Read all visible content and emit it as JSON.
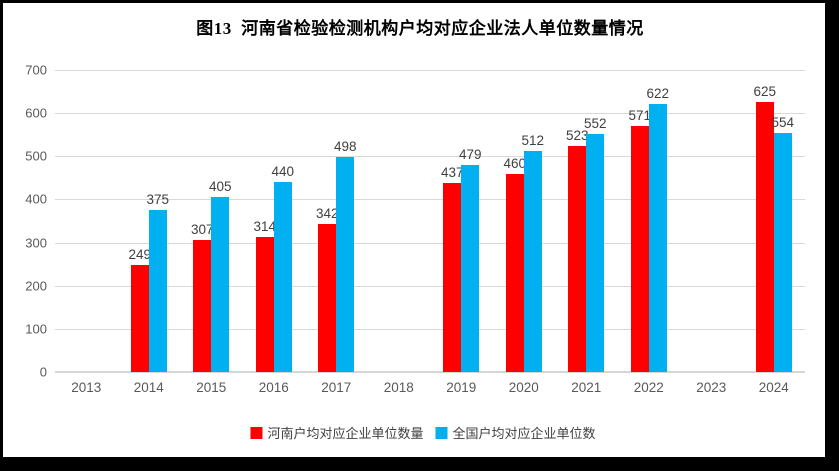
{
  "title": "图13  河南省检验检测机构户均对应企业法人单位数量情况",
  "colors": {
    "series_henan": "#ff0000",
    "series_national": "#00b0f0",
    "gridline": "#d9d9d9",
    "axis_text": "#595959",
    "data_label_text": "#404040",
    "frame": "#000000",
    "background": "#ffffff"
  },
  "legend": {
    "items": [
      {
        "swatch": "red-square-swatch",
        "label": "河南户均对应企业单位数量"
      },
      {
        "swatch": "blue-square-swatch",
        "label": "全国户均对应企业单位数"
      }
    ]
  },
  "chart_data": {
    "type": "bar",
    "title": "图13 河南省检验检测机构户均对应企业法人单位数量情况",
    "categories": [
      "2013",
      "2014",
      "2015",
      "2016",
      "2017",
      "2018",
      "2019",
      "2020",
      "2021",
      "2022",
      "2023",
      "2024"
    ],
    "series": [
      {
        "name": "河南户均对应企业单位数量",
        "color": "#ff0000",
        "values": [
          null,
          249,
          307,
          314,
          342,
          null,
          437,
          460,
          523,
          571,
          null,
          625
        ]
      },
      {
        "name": "全国户均对应企业单位数",
        "color": "#00b0f0",
        "values": [
          null,
          375,
          405,
          440,
          498,
          null,
          479,
          512,
          552,
          622,
          null,
          554
        ]
      }
    ],
    "xlabel": "",
    "ylabel": "",
    "ylim": [
      0,
      700
    ],
    "yticks": [
      0,
      100,
      200,
      300,
      400,
      500,
      600,
      700
    ],
    "grid": true,
    "data_labels": true,
    "legend_position": "bottom"
  }
}
